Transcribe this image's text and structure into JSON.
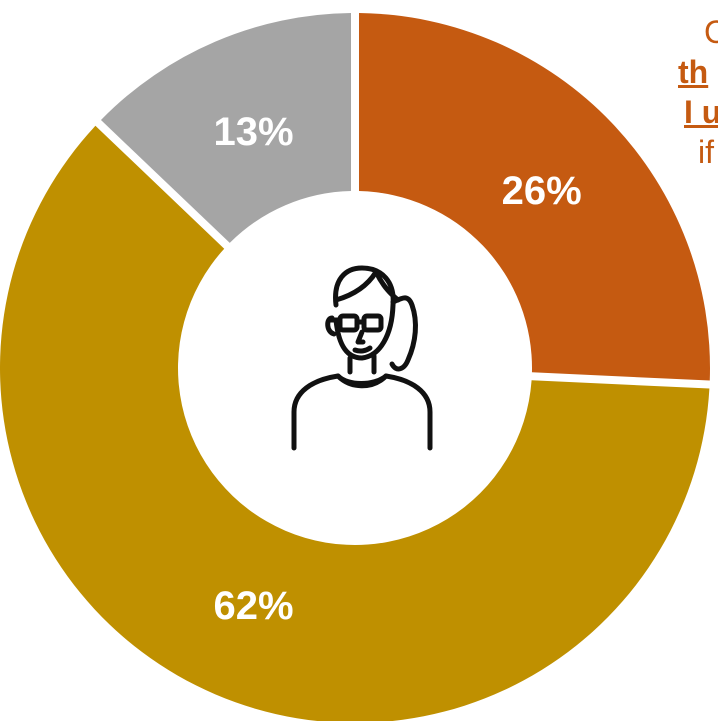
{
  "chart_data": {
    "type": "pie",
    "donut": true,
    "categories": [
      "",
      "",
      ""
    ],
    "values": [
      26,
      62,
      13
    ],
    "labels": [
      "26%",
      "62%",
      "13%"
    ],
    "colors": [
      "#c55a11",
      "#bf9000",
      "#a5a5a5"
    ],
    "title": "",
    "legend": "none"
  },
  "center_icon": "woman-with-glasses-icon",
  "side_text": {
    "line1": "C",
    "line2": "th",
    "line3": "I u",
    "line4": "if"
  }
}
